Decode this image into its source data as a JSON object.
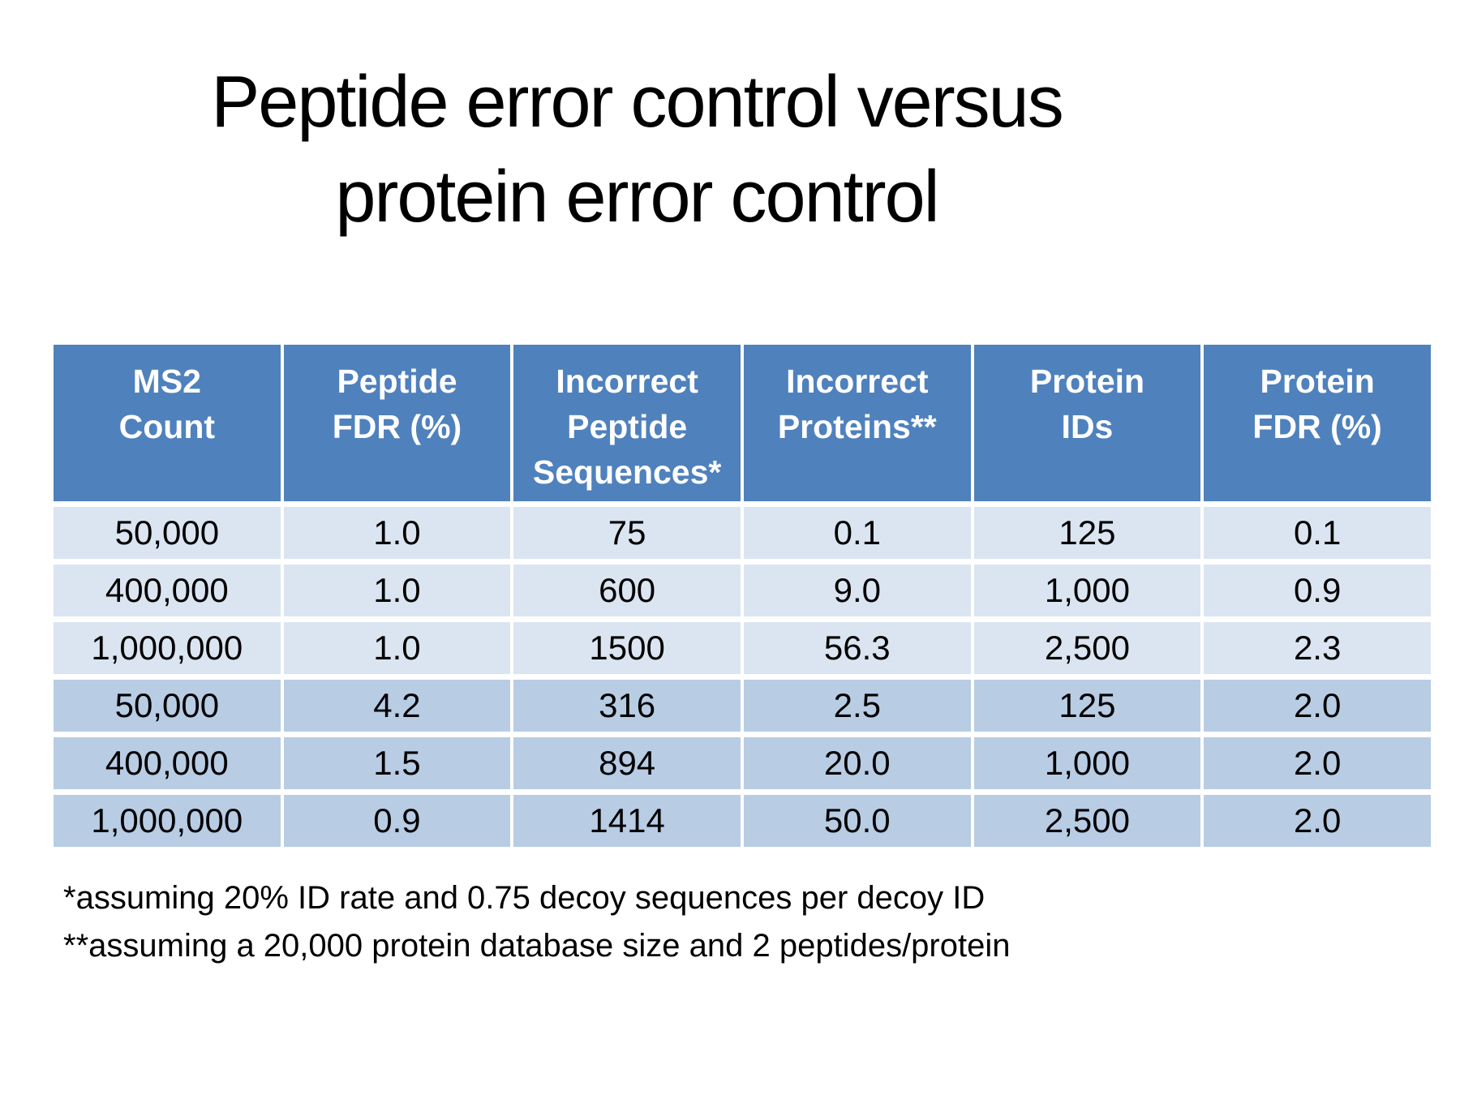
{
  "slide": {
    "title_line1": "Peptide error control versus",
    "title_line2": "protein error control"
  },
  "table": {
    "columns": [
      "MS2\nCount",
      "Peptide\nFDR (%)",
      "Incorrect\nPeptide\nSequences*",
      "Incorrect\nProteins**",
      "Protein\nIDs",
      "Protein\nFDR (%)"
    ],
    "rows": [
      [
        "50,000",
        "1.0",
        "75",
        "0.1",
        "125",
        "0.1"
      ],
      [
        "400,000",
        "1.0",
        "600",
        "9.0",
        "1,000",
        "0.9"
      ],
      [
        "1,000,000",
        "1.0",
        "1500",
        "56.3",
        "2,500",
        "2.3"
      ],
      [
        "50,000",
        "4.2",
        "316",
        "2.5",
        "125",
        "2.0"
      ],
      [
        "400,000",
        "1.5",
        "894",
        "20.0",
        "1,000",
        "2.0"
      ],
      [
        "1,000,000",
        "0.9",
        "1414",
        "50.0",
        "2,500",
        "2.0"
      ]
    ]
  },
  "footnotes": [
    "*assuming 20% ID rate and 0.75 decoy sequences per decoy ID",
    "**assuming a 20,000 protein database size and 2 peptides/protein"
  ],
  "colors": {
    "header_bg": "#4F81BD",
    "row_band_light": "#DBE5F1",
    "row_band_dark": "#B8CCE4",
    "header_text": "#FFFFFF",
    "body_text": "#000000",
    "background": "#FFFFFF"
  }
}
